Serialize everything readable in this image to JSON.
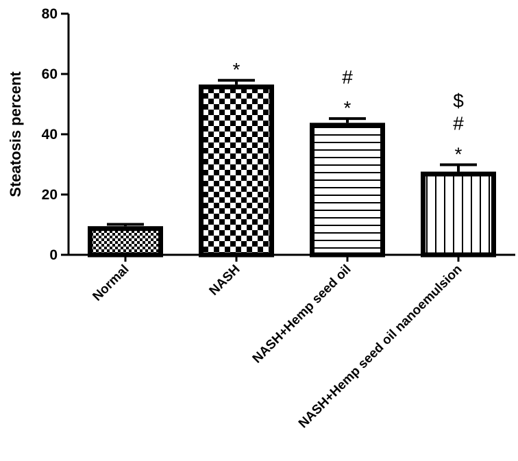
{
  "chart_data": {
    "type": "bar",
    "title": "",
    "xlabel": "",
    "ylabel": "Steatosis percent",
    "ylim": [
      0,
      80
    ],
    "yticks": [
      0,
      20,
      40,
      60,
      80
    ],
    "grid": false,
    "legend": null,
    "categories": [
      "Normal",
      "NASH",
      "NASH+Hemp seed oil",
      "NASH+Hemp seed oil nanoemulsion"
    ],
    "values": [
      9.5,
      56.5,
      43.8,
      27.6
    ],
    "error_bars": [
      0.6,
      1.4,
      1.4,
      2.3
    ],
    "patterns": [
      "fine-checker",
      "coarse-checker",
      "horizontal-lines",
      "vertical-lines"
    ],
    "annotations": [
      {
        "category": "Normal",
        "marks": []
      },
      {
        "category": "NASH",
        "marks": [
          "*"
        ]
      },
      {
        "category": "NASH+Hemp seed oil",
        "marks": [
          "#",
          "*"
        ]
      },
      {
        "category": "NASH+Hemp seed oil nanoemulsion",
        "marks": [
          "$",
          "#",
          "*"
        ]
      }
    ],
    "colors": {
      "bar_edge": "#000000",
      "bar_fill": "#ffffff",
      "axis": "#000000"
    }
  }
}
